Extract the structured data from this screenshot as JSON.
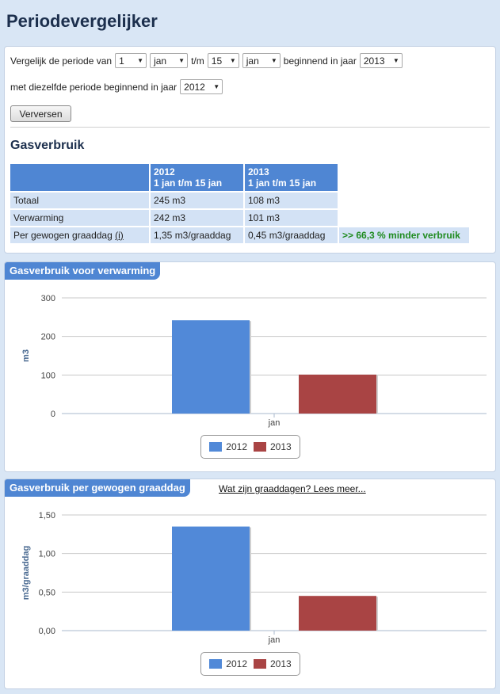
{
  "page": {
    "title": "Periodevergelijker"
  },
  "form": {
    "label_compare": "Vergelijk de periode van",
    "start_day": "1",
    "start_month": "jan",
    "label_until": "t/m",
    "end_day": "15",
    "end_month": "jan",
    "label_starting_year": "beginnend in jaar",
    "year": "2013",
    "label_same_period": "met diezelfde periode beginnend in jaar",
    "compare_year": "2012",
    "refresh_button": "Verversen"
  },
  "gas": {
    "section_title": "Gasverbruik",
    "columns": [
      {
        "year": "2012",
        "period": "1 jan t/m 15 jan"
      },
      {
        "year": "2013",
        "period": "1 jan t/m 15 jan"
      }
    ],
    "rows": [
      {
        "label": "Totaal",
        "v2012": "245 m3",
        "v2013": "108 m3"
      },
      {
        "label": "Verwarming",
        "v2012": "242 m3",
        "v2013": "101 m3"
      },
      {
        "label": "Per gewogen graaddag",
        "info": "(i)",
        "v2012": "1,35 m3/graaddag",
        "v2013": "0,45 m3/graaddag",
        "note": ">> 66,3 % minder verbruik"
      }
    ]
  },
  "charts": [
    {
      "tab": "Gasverbruik voor verwarming",
      "link": ""
    },
    {
      "tab": "Gasverbruik per gewogen graaddag",
      "link": "Wat zijn graaddagen? Lees meer..."
    }
  ],
  "colors": {
    "s2012": "#5189d8",
    "s2013": "#a94444",
    "accent": "#4f86d3"
  },
  "chart_data": [
    {
      "type": "bar",
      "title": "Gasverbruik voor verwarming",
      "categories": [
        "jan"
      ],
      "series": [
        {
          "name": "2012",
          "values": [
            242
          ]
        },
        {
          "name": "2013",
          "values": [
            101
          ]
        }
      ],
      "ylabel": "m3",
      "ylim": [
        0,
        300
      ],
      "yticks": [
        "0",
        "100",
        "200",
        "300"
      ],
      "ytick_values": [
        0,
        100,
        200,
        300
      ],
      "grid": true,
      "legend": "bottom-center"
    },
    {
      "type": "bar",
      "title": "Gasverbruik per gewogen graaddag",
      "categories": [
        "jan"
      ],
      "series": [
        {
          "name": "2012",
          "values": [
            1.35
          ]
        },
        {
          "name": "2013",
          "values": [
            0.45
          ]
        }
      ],
      "ylabel": "m3/graaddag",
      "ylim": [
        0,
        1.5
      ],
      "yticks": [
        "0,00",
        "0,50",
        "1,00",
        "1,50"
      ],
      "ytick_values": [
        0,
        0.5,
        1.0,
        1.5
      ],
      "grid": true,
      "legend": "bottom-center"
    }
  ]
}
